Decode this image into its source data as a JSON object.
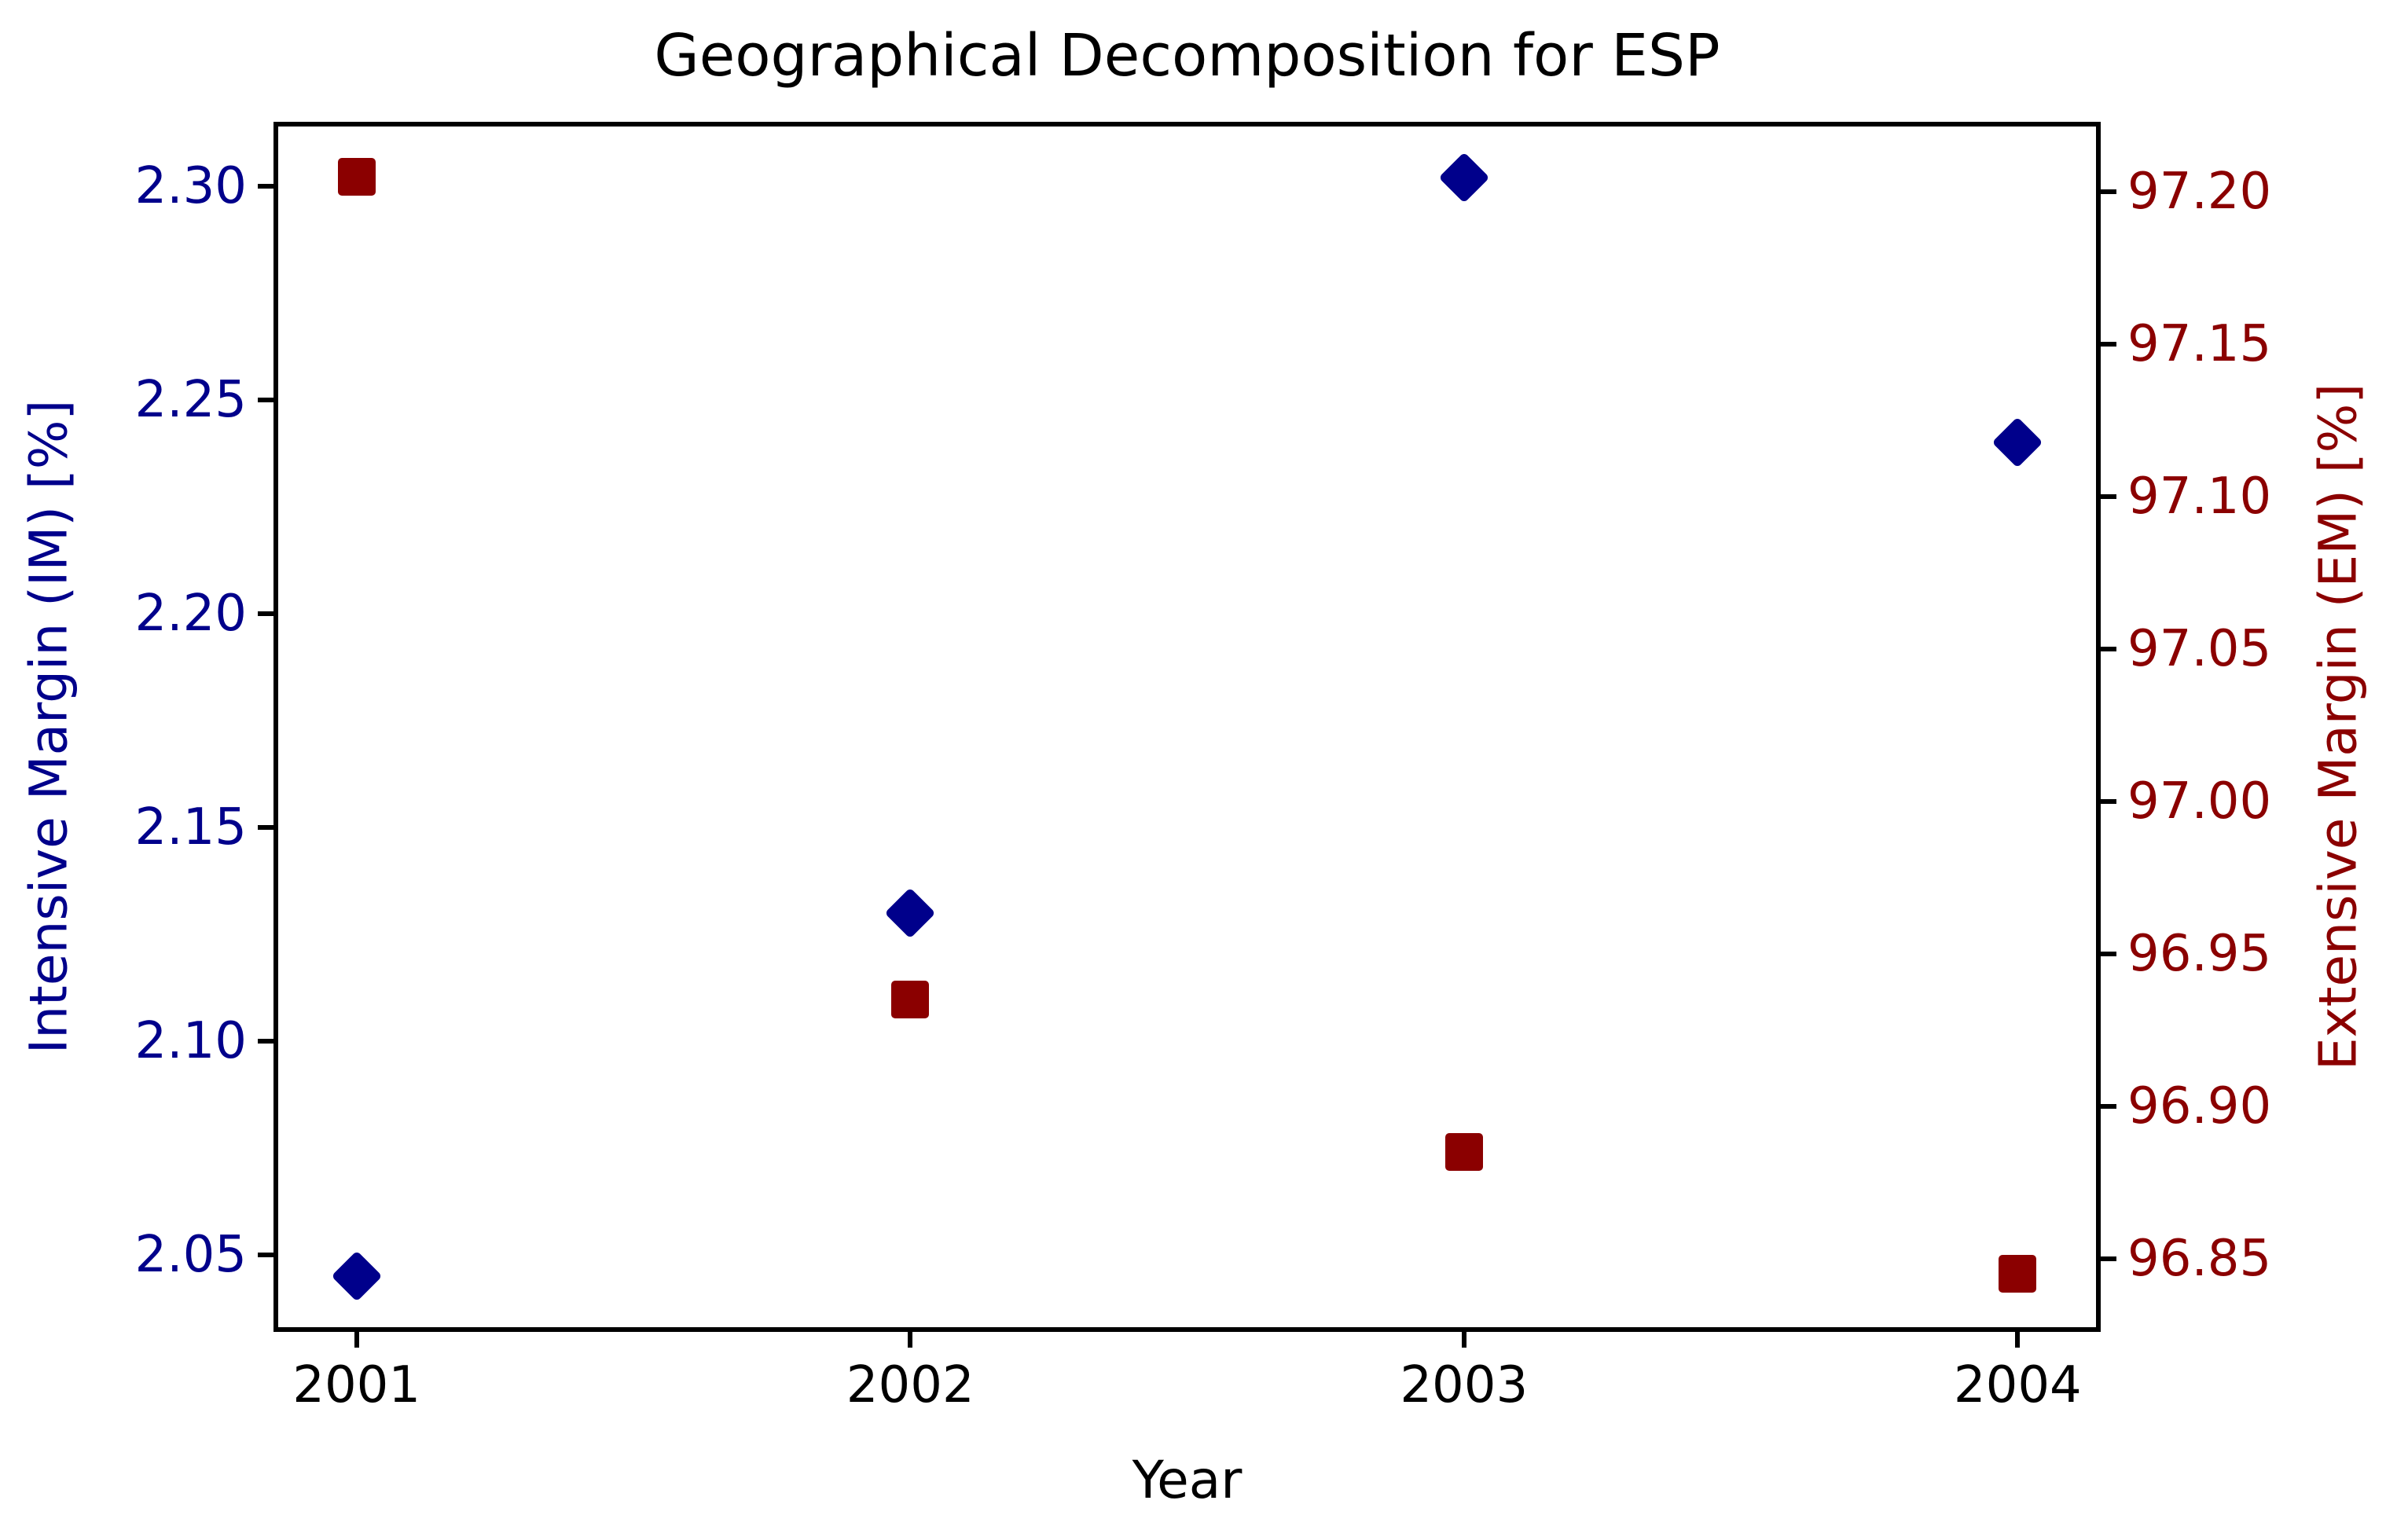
{
  "title": "Geographical Decomposition for ESP",
  "xlabel": "Year",
  "left_axis_label": "Intensive Margin (IM) [%]",
  "right_axis_label": "Extensive Margin (EM) [%]",
  "colors": {
    "im_series": "#00008b",
    "em_series": "#8b0000",
    "spine": "#000000",
    "title_text": "#000000"
  },
  "chart_data": {
    "type": "scatter",
    "title": "Geographical Decomposition for ESP",
    "xlabel": "Year",
    "x": [
      2001,
      2002,
      2003,
      2004
    ],
    "x_tick_labels": [
      "2001",
      "2002",
      "2003",
      "2004"
    ],
    "xlim": [
      2000.85,
      2004.15
    ],
    "grid": false,
    "legend": "none",
    "series": [
      {
        "name": "Intensive Margin (IM) [%]",
        "axis": "left",
        "marker": "diamond",
        "color": "#00008b",
        "values": [
          2.045,
          2.13,
          2.302,
          2.24
        ]
      },
      {
        "name": "Extensive Margin (EM) [%]",
        "axis": "right",
        "marker": "square",
        "color": "#8b0000",
        "values": [
          97.205,
          96.935,
          96.885,
          96.845
        ]
      }
    ],
    "left_axis": {
      "label": "Intensive Margin (IM) [%]",
      "color": "#00008b",
      "ticks": [
        2.3,
        2.25,
        2.2,
        2.15,
        2.1,
        2.05
      ],
      "tick_labels": [
        "2.30",
        "2.25",
        "2.20",
        "2.15",
        "2.10",
        "2.05"
      ],
      "lim": [
        2.032,
        2.315
      ]
    },
    "right_axis": {
      "label": "Extensive Margin (EM) [%]",
      "color": "#8b0000",
      "ticks": [
        97.2,
        97.15,
        97.1,
        97.05,
        97.0,
        96.95,
        96.9,
        96.85
      ],
      "tick_labels": [
        "97.20",
        "97.15",
        "97.10",
        "97.05",
        "97.00",
        "96.95",
        "96.90",
        "96.85"
      ],
      "lim": [
        96.826,
        97.223
      ]
    }
  }
}
